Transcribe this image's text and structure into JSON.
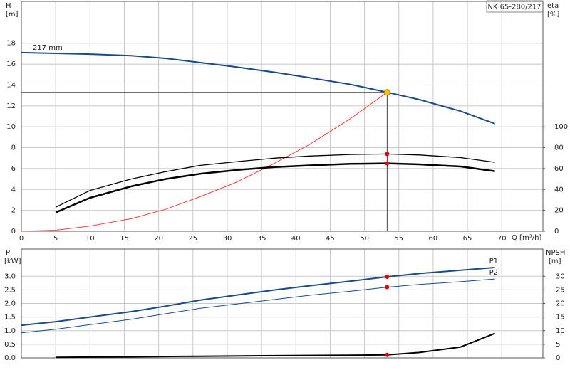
{
  "chart_data": [
    {
      "type": "line",
      "title": "NK 65-280/217",
      "ylabel": "H",
      "yunit": "[m]",
      "y2label": "eta",
      "y2unit": "[%]",
      "xlabel": "Q [m³/h]",
      "xlim": [
        0,
        76
      ],
      "xticks": [
        0,
        5,
        10,
        15,
        20,
        25,
        30,
        35,
        40,
        45,
        50,
        55,
        60,
        65,
        70
      ],
      "xtick_labels": true,
      "ylim": [
        0,
        22
      ],
      "yticks": [
        0,
        2,
        4,
        6,
        8,
        10,
        12,
        14,
        16,
        18
      ],
      "y2lim": [
        0,
        220
      ],
      "y2ticks": [
        0,
        20,
        40,
        60,
        80,
        100
      ],
      "grid": true,
      "series": [
        {
          "name": "217 mm",
          "color": "#1a4a8a",
          "width": 2,
          "x": [
            0,
            10,
            16,
            21,
            26,
            31,
            37,
            42,
            48,
            53.3,
            58,
            64,
            69
          ],
          "values": [
            17.1,
            16.95,
            16.8,
            16.55,
            16.15,
            15.75,
            15.2,
            14.7,
            14.05,
            13.3,
            12.6,
            11.5,
            10.3
          ]
        },
        {
          "color": "#ff3b3b",
          "width": 1,
          "x": [
            0,
            5,
            10,
            16,
            21,
            26,
            31,
            36,
            42,
            48,
            53.3
          ],
          "values": [
            0,
            0.1,
            0.5,
            1.2,
            2.1,
            3.3,
            4.6,
            6.2,
            8.3,
            10.8,
            13.3
          ]
        },
        {
          "color": "#000000",
          "width": 1.3,
          "axis": "y2",
          "x": [
            5,
            10,
            16,
            21,
            26,
            32,
            37,
            42,
            48,
            53.3,
            58,
            64,
            69
          ],
          "values": [
            23,
            39,
            50,
            57,
            63,
            67,
            70,
            72,
            73.5,
            74,
            73,
            70.5,
            66
          ]
        },
        {
          "color": "#000000",
          "width": 2.5,
          "axis": "y2",
          "x": [
            5,
            10,
            16,
            21,
            26,
            32,
            37,
            42,
            48,
            53.3,
            58,
            64,
            69
          ],
          "values": [
            18,
            32,
            43,
            50,
            55,
            59,
            61.5,
            63,
            64.5,
            65,
            64,
            62,
            57.5
          ]
        }
      ],
      "markers": [
        {
          "x": 53.3,
          "y": 13.3,
          "color": "#ffc000",
          "guides": true
        },
        {
          "x": 53.3,
          "y": 74,
          "axis": "y2",
          "color": "#e00000"
        },
        {
          "x": 53.3,
          "y": 65,
          "axis": "y2",
          "color": "#e00000"
        }
      ]
    },
    {
      "type": "line",
      "ylabel": "P",
      "yunit": "[kW]",
      "y2label": "NPSH",
      "y2unit": "[m]",
      "xlim": [
        0,
        76
      ],
      "xticks": [
        0,
        5,
        10,
        15,
        20,
        25,
        30,
        35,
        40,
        45,
        50,
        55,
        60,
        65,
        70
      ],
      "xtick_labels": false,
      "ylim": [
        0,
        4
      ],
      "yticks": [
        {
          "value": 0,
          "label": "0.0"
        },
        0.5,
        {
          "value": 1,
          "label": "1.0"
        },
        1.5,
        {
          "value": 2,
          "label": "2.0"
        },
        2.5,
        {
          "value": 3,
          "label": "3.0"
        }
      ],
      "y2lim": [
        0,
        40
      ],
      "y2ticks": [
        0,
        5,
        10,
        15,
        20,
        25,
        30
      ],
      "grid": true,
      "series": [
        {
          "name": "P1",
          "color": "#1a4a8a",
          "width": 2,
          "x": [
            0,
            5,
            10,
            16,
            21,
            26,
            32,
            37,
            42,
            48,
            53.3,
            58,
            64,
            69
          ],
          "values": [
            1.2,
            1.33,
            1.5,
            1.7,
            1.9,
            2.12,
            2.33,
            2.5,
            2.65,
            2.82,
            2.98,
            3.1,
            3.22,
            3.32
          ]
        },
        {
          "name": "P2",
          "color": "#1a4a8a",
          "width": 1,
          "x": [
            0,
            5,
            10,
            16,
            21,
            26,
            32,
            37,
            42,
            48,
            53.3,
            58,
            64,
            69
          ],
          "values": [
            0.92,
            1.05,
            1.22,
            1.42,
            1.62,
            1.82,
            2.0,
            2.15,
            2.3,
            2.45,
            2.6,
            2.7,
            2.8,
            2.9
          ]
        },
        {
          "color": "#000000",
          "width": 2,
          "axis": "y2",
          "x": [
            5,
            16,
            26,
            37,
            48,
            53.3,
            58,
            64,
            69
          ],
          "values": [
            0.2,
            0.4,
            0.6,
            0.8,
            1.0,
            1.1,
            2,
            4,
            9
          ]
        }
      ],
      "markers": [
        {
          "x": 53.3,
          "y": 2.98,
          "color": "#e00000"
        },
        {
          "x": 53.3,
          "y": 2.6,
          "color": "#e00000"
        },
        {
          "x": 53.3,
          "y": 1.1,
          "axis": "y2",
          "color": "#e00000"
        }
      ]
    }
  ]
}
